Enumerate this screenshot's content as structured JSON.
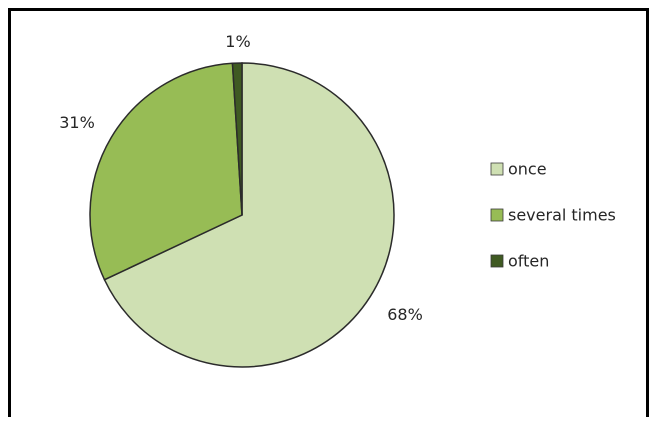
{
  "chart_data": {
    "type": "pie",
    "title": "",
    "categories": [
      "once",
      "several times",
      "often"
    ],
    "values": [
      68,
      31,
      1
    ],
    "labels": [
      "68%",
      "31%",
      "1%"
    ],
    "colors": [
      "#cfe0b3",
      "#97bc55",
      "#3f5a22"
    ],
    "legend": "right"
  }
}
